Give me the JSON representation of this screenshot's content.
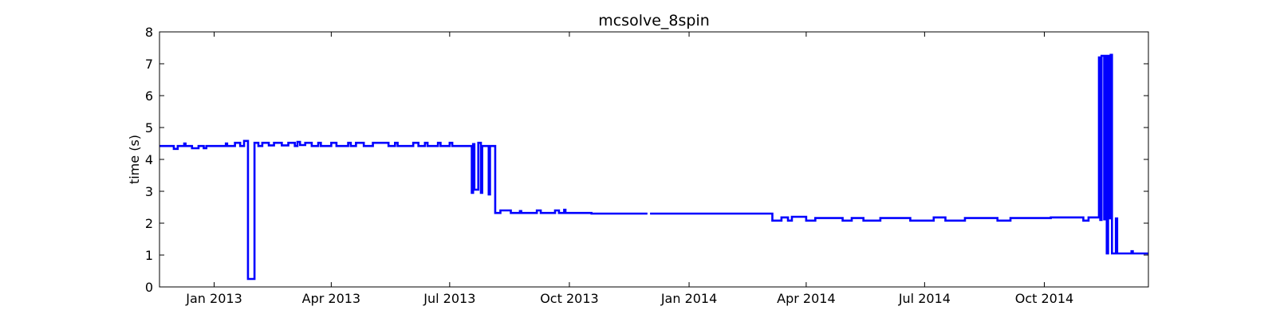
{
  "chart_data": {
    "type": "line",
    "title": "mcsolve_8spin",
    "xlabel": "",
    "ylabel": "time (s)",
    "ylim": [
      0,
      8
    ],
    "yticks": [
      0,
      1,
      2,
      3,
      4,
      5,
      6,
      7,
      8
    ],
    "xlim": [
      "2012-11-20",
      "2014-12-20"
    ],
    "xticks": [
      {
        "date": "2013-01-01",
        "label": "Jan 2013"
      },
      {
        "date": "2013-04-01",
        "label": "Apr 2013"
      },
      {
        "date": "2013-07-01",
        "label": "Jul 2013"
      },
      {
        "date": "2013-10-01",
        "label": "Oct 2013"
      },
      {
        "date": "2014-01-01",
        "label": "Jan 2014"
      },
      {
        "date": "2014-04-01",
        "label": "Apr 2014"
      },
      {
        "date": "2014-07-01",
        "label": "Jul 2014"
      },
      {
        "date": "2014-10-01",
        "label": "Oct 2014"
      }
    ],
    "grid": false,
    "legend": "none",
    "series": [
      {
        "color": "#0000ff",
        "segments": [
          [
            [
              "2012-11-20",
              4.42
            ],
            [
              "2012-12-01",
              4.42
            ],
            [
              "2012-12-01",
              4.33
            ],
            [
              "2012-12-04",
              4.33
            ],
            [
              "2012-12-04",
              4.42
            ],
            [
              "2012-12-09",
              4.42
            ],
            [
              "2012-12-09",
              4.5
            ],
            [
              "2012-12-10",
              4.5
            ],
            [
              "2012-12-10",
              4.42
            ],
            [
              "2012-12-15",
              4.42
            ],
            [
              "2012-12-15",
              4.35
            ],
            [
              "2012-12-20",
              4.35
            ],
            [
              "2012-12-20",
              4.42
            ],
            [
              "2012-12-24",
              4.42
            ],
            [
              "2012-12-24",
              4.35
            ],
            [
              "2012-12-26",
              4.35
            ],
            [
              "2012-12-26",
              4.42
            ],
            [
              "2013-01-10",
              4.42
            ],
            [
              "2013-01-10",
              4.5
            ],
            [
              "2013-01-11",
              4.5
            ],
            [
              "2013-01-11",
              4.42
            ],
            [
              "2013-01-17",
              4.42
            ],
            [
              "2013-01-17",
              4.52
            ],
            [
              "2013-01-21",
              4.52
            ],
            [
              "2013-01-21",
              4.42
            ],
            [
              "2013-01-24",
              4.42
            ],
            [
              "2013-01-24",
              4.58
            ],
            [
              "2013-01-27",
              4.58
            ],
            [
              "2013-01-27",
              0.25
            ],
            [
              "2013-02-01",
              0.25
            ],
            [
              "2013-02-01",
              4.52
            ],
            [
              "2013-02-04",
              4.52
            ],
            [
              "2013-02-04",
              4.42
            ],
            [
              "2013-02-07",
              4.42
            ],
            [
              "2013-02-07",
              4.52
            ],
            [
              "2013-02-12",
              4.52
            ],
            [
              "2013-02-12",
              4.44
            ],
            [
              "2013-02-16",
              4.44
            ],
            [
              "2013-02-16",
              4.52
            ],
            [
              "2013-02-22",
              4.52
            ],
            [
              "2013-02-22",
              4.44
            ],
            [
              "2013-02-27",
              4.44
            ],
            [
              "2013-02-27",
              4.52
            ],
            [
              "2013-03-04",
              4.52
            ],
            [
              "2013-03-04",
              4.42
            ],
            [
              "2013-03-06",
              4.42
            ],
            [
              "2013-03-06",
              4.55
            ],
            [
              "2013-03-08",
              4.55
            ],
            [
              "2013-03-08",
              4.45
            ],
            [
              "2013-03-12",
              4.45
            ],
            [
              "2013-03-12",
              4.52
            ],
            [
              "2013-03-17",
              4.52
            ],
            [
              "2013-03-17",
              4.42
            ],
            [
              "2013-03-22",
              4.42
            ],
            [
              "2013-03-22",
              4.52
            ],
            [
              "2013-03-24",
              4.52
            ],
            [
              "2013-03-24",
              4.42
            ],
            [
              "2013-04-01",
              4.42
            ],
            [
              "2013-04-01",
              4.52
            ],
            [
              "2013-04-05",
              4.52
            ],
            [
              "2013-04-05",
              4.42
            ],
            [
              "2013-04-14",
              4.42
            ],
            [
              "2013-04-14",
              4.52
            ],
            [
              "2013-04-16",
              4.52
            ],
            [
              "2013-04-16",
              4.42
            ],
            [
              "2013-04-20",
              4.42
            ],
            [
              "2013-04-20",
              4.52
            ],
            [
              "2013-04-26",
              4.52
            ],
            [
              "2013-04-26",
              4.42
            ],
            [
              "2013-05-03",
              4.42
            ],
            [
              "2013-05-03",
              4.52
            ],
            [
              "2013-05-15",
              4.52
            ],
            [
              "2013-05-15",
              4.42
            ],
            [
              "2013-05-20",
              4.42
            ],
            [
              "2013-05-20",
              4.52
            ],
            [
              "2013-05-22",
              4.52
            ],
            [
              "2013-05-22",
              4.42
            ],
            [
              "2013-06-03",
              4.42
            ],
            [
              "2013-06-03",
              4.52
            ],
            [
              "2013-06-07",
              4.52
            ],
            [
              "2013-06-07",
              4.42
            ],
            [
              "2013-06-12",
              4.42
            ],
            [
              "2013-06-12",
              4.52
            ],
            [
              "2013-06-14",
              4.52
            ],
            [
              "2013-06-14",
              4.42
            ],
            [
              "2013-06-22",
              4.42
            ],
            [
              "2013-06-22",
              4.52
            ],
            [
              "2013-06-24",
              4.52
            ],
            [
              "2013-06-24",
              4.42
            ],
            [
              "2013-07-01",
              4.42
            ],
            [
              "2013-07-01",
              4.52
            ],
            [
              "2013-07-03",
              4.52
            ],
            [
              "2013-07-03",
              4.42
            ],
            [
              "2013-07-18",
              4.42
            ],
            [
              "2013-07-18",
              2.95
            ],
            [
              "2013-07-19",
              2.95
            ],
            [
              "2013-07-19",
              4.48
            ],
            [
              "2013-07-20",
              4.48
            ],
            [
              "2013-07-20",
              3.05
            ],
            [
              "2013-07-23",
              3.05
            ],
            [
              "2013-07-23",
              4.52
            ],
            [
              "2013-07-25",
              4.52
            ],
            [
              "2013-07-25",
              2.95
            ],
            [
              "2013-07-26",
              2.95
            ],
            [
              "2013-07-26",
              4.42
            ],
            [
              "2013-07-31",
              4.42
            ],
            [
              "2013-07-31",
              2.9
            ],
            [
              "2013-08-01",
              2.9
            ],
            [
              "2013-08-01",
              4.42
            ],
            [
              "2013-08-05",
              4.42
            ],
            [
              "2013-08-05",
              2.32
            ],
            [
              "2013-08-09",
              2.32
            ],
            [
              "2013-08-09",
              2.4
            ],
            [
              "2013-08-17",
              2.4
            ],
            [
              "2013-08-17",
              2.32
            ],
            [
              "2013-08-24",
              2.32
            ],
            [
              "2013-08-24",
              2.38
            ],
            [
              "2013-08-25",
              2.38
            ],
            [
              "2013-08-25",
              2.32
            ],
            [
              "2013-09-06",
              2.32
            ],
            [
              "2013-09-06",
              2.4
            ],
            [
              "2013-09-09",
              2.4
            ],
            [
              "2013-09-09",
              2.32
            ],
            [
              "2013-09-20",
              2.32
            ],
            [
              "2013-09-20",
              2.4
            ],
            [
              "2013-09-23",
              2.4
            ],
            [
              "2013-09-23",
              2.32
            ],
            [
              "2013-09-27",
              2.32
            ],
            [
              "2013-09-27",
              2.42
            ],
            [
              "2013-09-28",
              2.42
            ],
            [
              "2013-09-28",
              2.32
            ],
            [
              "2013-10-18",
              2.32
            ],
            [
              "2013-10-18",
              2.3
            ],
            [
              "2013-11-30",
              2.3
            ]
          ],
          [
            [
              "2013-12-02",
              2.3
            ],
            [
              "2014-03-06",
              2.3
            ],
            [
              "2014-03-06",
              2.08
            ],
            [
              "2014-03-13",
              2.08
            ],
            [
              "2014-03-13",
              2.18
            ],
            [
              "2014-03-18",
              2.18
            ],
            [
              "2014-03-18",
              2.08
            ],
            [
              "2014-03-21",
              2.08
            ],
            [
              "2014-03-21",
              2.2
            ],
            [
              "2014-04-01",
              2.2
            ],
            [
              "2014-04-01",
              2.08
            ],
            [
              "2014-04-08",
              2.08
            ],
            [
              "2014-04-08",
              2.16
            ],
            [
              "2014-04-29",
              2.16
            ],
            [
              "2014-04-29",
              2.08
            ],
            [
              "2014-05-06",
              2.08
            ],
            [
              "2014-05-06",
              2.16
            ],
            [
              "2014-05-15",
              2.16
            ],
            [
              "2014-05-15",
              2.08
            ],
            [
              "2014-05-28",
              2.08
            ],
            [
              "2014-05-28",
              2.16
            ],
            [
              "2014-06-20",
              2.16
            ],
            [
              "2014-06-20",
              2.08
            ],
            [
              "2014-07-08",
              2.08
            ],
            [
              "2014-07-08",
              2.18
            ],
            [
              "2014-07-17",
              2.18
            ],
            [
              "2014-07-17",
              2.08
            ],
            [
              "2014-08-01",
              2.08
            ],
            [
              "2014-08-01",
              2.16
            ],
            [
              "2014-08-26",
              2.16
            ],
            [
              "2014-08-26",
              2.08
            ],
            [
              "2014-09-05",
              2.08
            ],
            [
              "2014-09-05",
              2.16
            ],
            [
              "2014-10-06",
              2.16
            ],
            [
              "2014-10-06",
              2.18
            ],
            [
              "2014-10-31",
              2.18
            ],
            [
              "2014-10-31",
              2.08
            ],
            [
              "2014-11-04",
              2.08
            ],
            [
              "2014-11-04",
              2.18
            ],
            [
              "2014-11-12",
              2.18
            ],
            [
              "2014-11-12",
              7.2
            ],
            [
              "2014-11-13",
              7.2
            ],
            [
              "2014-11-13",
              2.1
            ],
            [
              "2014-11-14",
              2.1
            ],
            [
              "2014-11-14",
              7.25
            ],
            [
              "2014-11-16",
              7.25
            ],
            [
              "2014-11-16",
              2.12
            ],
            [
              "2014-11-17",
              2.12
            ],
            [
              "2014-11-17",
              7.25
            ],
            [
              "2014-11-18",
              7.25
            ],
            [
              "2014-11-18",
              1.05
            ],
            [
              "2014-11-19",
              1.05
            ],
            [
              "2014-11-19",
              7.25
            ],
            [
              "2014-11-20",
              7.25
            ],
            [
              "2014-11-20",
              2.15
            ],
            [
              "2014-11-21",
              2.15
            ],
            [
              "2014-11-21",
              7.28
            ],
            [
              "2014-11-22",
              7.28
            ],
            [
              "2014-11-22",
              1.05
            ],
            [
              "2014-11-25",
              1.05
            ],
            [
              "2014-11-25",
              2.15
            ],
            [
              "2014-11-26",
              2.15
            ],
            [
              "2014-11-26",
              1.05
            ],
            [
              "2014-12-07",
              1.05
            ],
            [
              "2014-12-07",
              1.12
            ],
            [
              "2014-12-08",
              1.12
            ],
            [
              "2014-12-08",
              1.05
            ],
            [
              "2014-12-20",
              1.05
            ]
          ]
        ]
      }
    ]
  }
}
